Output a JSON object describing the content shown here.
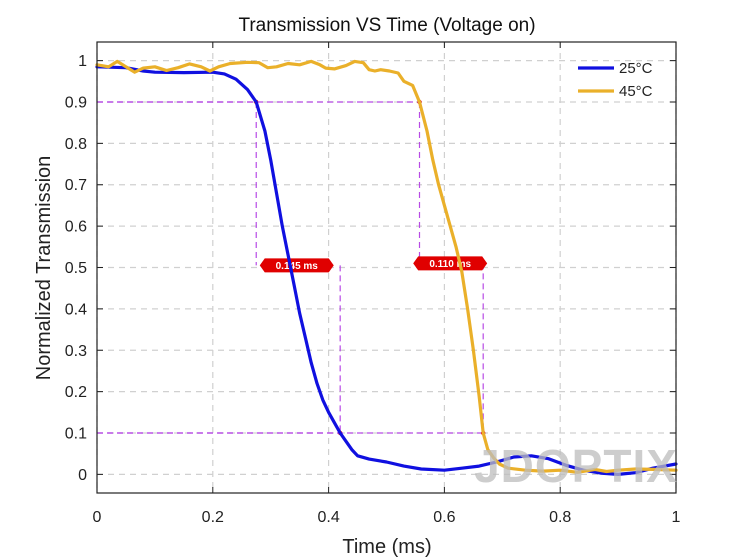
{
  "chart_data": {
    "type": "line",
    "title": "Transmission VS Time (Voltage on)",
    "xlabel": "Time (ms)",
    "ylabel": "Normalized Transmission",
    "xlim": [
      0,
      1
    ],
    "ylim": [
      -0.045,
      1.045
    ],
    "x_ticks": [
      0,
      0.2,
      0.4,
      0.6,
      0.8,
      1
    ],
    "x_tick_labels": [
      "0",
      "0.2",
      "0.4",
      "0.6",
      "0.8",
      "1"
    ],
    "y_ticks": [
      0,
      0.1,
      0.2,
      0.3,
      0.4,
      0.5,
      0.6,
      0.7,
      0.8,
      0.9,
      1
    ],
    "y_tick_labels": [
      "0",
      "0.1",
      "0.2",
      "0.3",
      "0.4",
      "0.5",
      "0.6",
      "0.7",
      "0.8",
      "0.9",
      "1"
    ],
    "grid": true,
    "legend_position": "top-right",
    "series": [
      {
        "name": "25°C",
        "color": "#1010e0",
        "points": [
          [
            0,
            0.985
          ],
          [
            0.05,
            0.983
          ],
          [
            0.08,
            0.975
          ],
          [
            0.1,
            0.972
          ],
          [
            0.15,
            0.971
          ],
          [
            0.2,
            0.972
          ],
          [
            0.22,
            0.968
          ],
          [
            0.24,
            0.955
          ],
          [
            0.26,
            0.93
          ],
          [
            0.275,
            0.9
          ],
          [
            0.29,
            0.83
          ],
          [
            0.3,
            0.76
          ],
          [
            0.31,
            0.68
          ],
          [
            0.32,
            0.6
          ],
          [
            0.33,
            0.53
          ],
          [
            0.34,
            0.46
          ],
          [
            0.35,
            0.39
          ],
          [
            0.36,
            0.33
          ],
          [
            0.37,
            0.27
          ],
          [
            0.38,
            0.22
          ],
          [
            0.39,
            0.18
          ],
          [
            0.4,
            0.15
          ],
          [
            0.41,
            0.125
          ],
          [
            0.42,
            0.1
          ],
          [
            0.43,
            0.08
          ],
          [
            0.44,
            0.06
          ],
          [
            0.45,
            0.045
          ],
          [
            0.47,
            0.037
          ],
          [
            0.5,
            0.03
          ],
          [
            0.53,
            0.02
          ],
          [
            0.56,
            0.013
          ],
          [
            0.6,
            0.01
          ],
          [
            0.63,
            0.015
          ],
          [
            0.66,
            0.02
          ],
          [
            0.69,
            0.03
          ],
          [
            0.72,
            0.042
          ],
          [
            0.75,
            0.045
          ],
          [
            0.78,
            0.038
          ],
          [
            0.81,
            0.022
          ],
          [
            0.84,
            0.01
          ],
          [
            0.87,
            0.003
          ],
          [
            0.9,
            0
          ],
          [
            0.93,
            0.004
          ],
          [
            0.96,
            0.015
          ],
          [
            1,
            0.025
          ]
        ]
      },
      {
        "name": "45°C",
        "color": "#eab02a",
        "points": [
          [
            0,
            0.99
          ],
          [
            0.02,
            0.985
          ],
          [
            0.035,
            0.998
          ],
          [
            0.05,
            0.985
          ],
          [
            0.065,
            0.972
          ],
          [
            0.08,
            0.982
          ],
          [
            0.1,
            0.985
          ],
          [
            0.12,
            0.976
          ],
          [
            0.14,
            0.983
          ],
          [
            0.16,
            0.992
          ],
          [
            0.18,
            0.985
          ],
          [
            0.195,
            0.975
          ],
          [
            0.21,
            0.985
          ],
          [
            0.23,
            0.993
          ],
          [
            0.26,
            0.996
          ],
          [
            0.28,
            0.995
          ],
          [
            0.295,
            0.983
          ],
          [
            0.31,
            0.985
          ],
          [
            0.33,
            0.993
          ],
          [
            0.35,
            0.99
          ],
          [
            0.37,
            0.998
          ],
          [
            0.385,
            0.99
          ],
          [
            0.395,
            0.982
          ],
          [
            0.41,
            0.98
          ],
          [
            0.43,
            0.988
          ],
          [
            0.445,
            0.998
          ],
          [
            0.46,
            0.995
          ],
          [
            0.47,
            0.978
          ],
          [
            0.48,
            0.975
          ],
          [
            0.49,
            0.978
          ],
          [
            0.505,
            0.975
          ],
          [
            0.52,
            0.97
          ],
          [
            0.53,
            0.95
          ],
          [
            0.545,
            0.94
          ],
          [
            0.557,
            0.9
          ],
          [
            0.57,
            0.83
          ],
          [
            0.58,
            0.76
          ],
          [
            0.59,
            0.7
          ],
          [
            0.6,
            0.65
          ],
          [
            0.61,
            0.6
          ],
          [
            0.62,
            0.55
          ],
          [
            0.63,
            0.49
          ],
          [
            0.64,
            0.4
          ],
          [
            0.65,
            0.3
          ],
          [
            0.66,
            0.19
          ],
          [
            0.667,
            0.1
          ],
          [
            0.675,
            0.06
          ],
          [
            0.685,
            0.04
          ],
          [
            0.695,
            0.025
          ],
          [
            0.71,
            0.015
          ],
          [
            0.74,
            0.01
          ],
          [
            0.77,
            0.008
          ],
          [
            0.8,
            0.01
          ],
          [
            0.83,
            0.005
          ],
          [
            0.86,
            0.012
          ],
          [
            0.88,
            0.007
          ],
          [
            0.9,
            0.01
          ],
          [
            0.93,
            0.013
          ],
          [
            0.96,
            0.012
          ],
          [
            1,
            0.01
          ]
        ]
      }
    ],
    "annotations": [
      {
        "text": "0.145 ms",
        "x_start": 0.275,
        "x_end": 0.42,
        "y_top": 0.9,
        "y_bottom": 0.1,
        "x_label": 0.345,
        "y_label": 0.505,
        "line_color": "#b84be6",
        "label_bg": "#e00000"
      },
      {
        "text": "0.110 ms",
        "x_start": 0.557,
        "x_end": 0.667,
        "y_top": 0.9,
        "y_bottom": 0.1,
        "x_label": 0.61,
        "y_label": 0.51,
        "line_color": "#b84be6",
        "label_bg": "#e00000"
      }
    ]
  },
  "watermark": {
    "text": "JDOPTIX"
  }
}
